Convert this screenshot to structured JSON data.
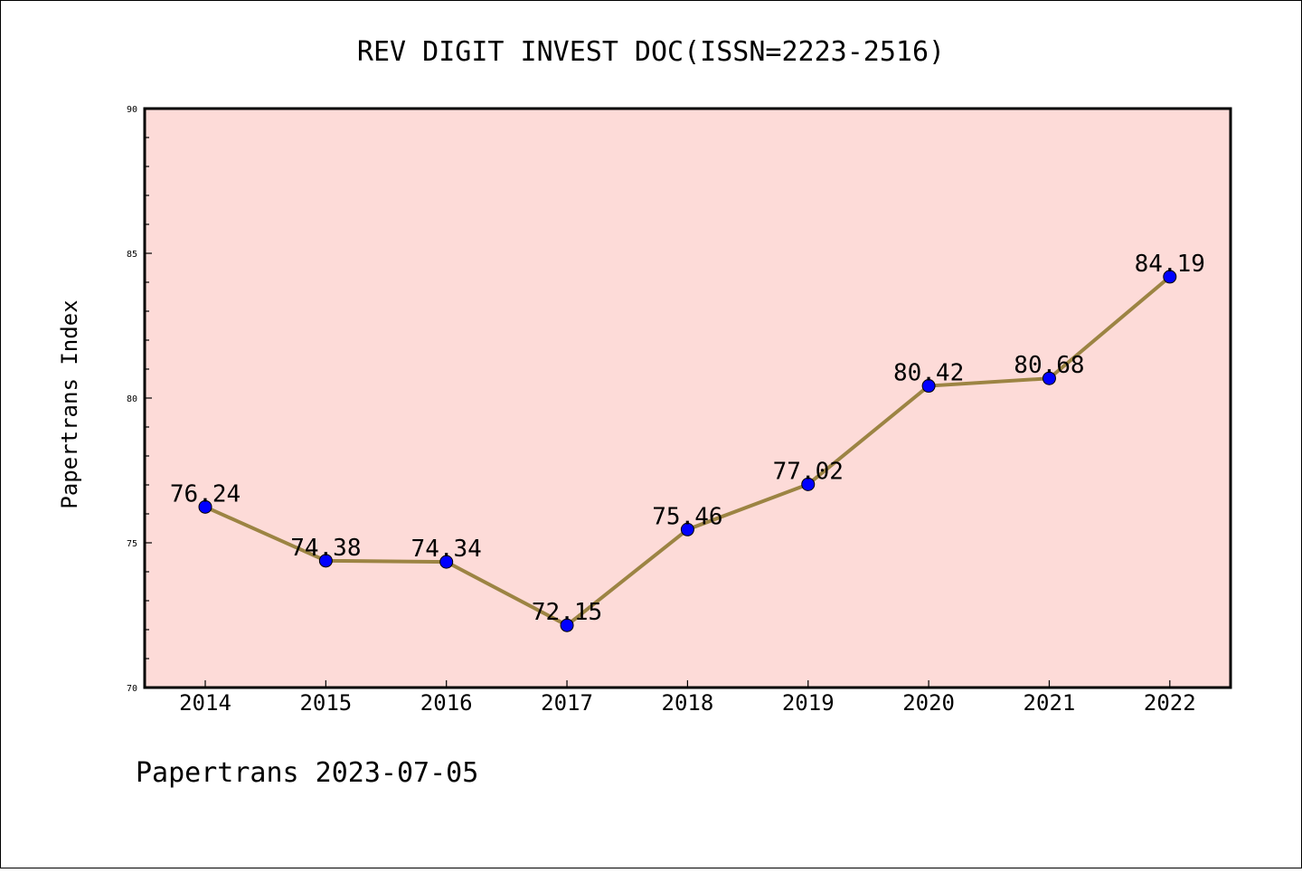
{
  "chart_data": {
    "type": "line",
    "title": "REV DIGIT INVEST DOC(ISSN=2223-2516)",
    "xlabel": "",
    "ylabel": "Papertrans Index",
    "footer": "Papertrans 2023-07-05",
    "categories": [
      "2014",
      "2015",
      "2016",
      "2017",
      "2018",
      "2019",
      "2020",
      "2021",
      "2022"
    ],
    "series": [
      {
        "values": [
          76.24,
          74.38,
          74.34,
          72.15,
          75.46,
          77.02,
          80.42,
          80.68,
          84.19
        ],
        "labels": [
          "76.24",
          "74.38",
          "74.34",
          "72.15",
          "75.46",
          "77.02",
          "80.42",
          "80.68",
          "84.19"
        ]
      }
    ],
    "ylim": [
      70,
      90
    ],
    "y_ticks": [
      70,
      75,
      80,
      85,
      90
    ],
    "y_tick_labels": [
      "70",
      "75",
      "80",
      "85",
      "90"
    ],
    "y_minor_step": 1,
    "grid": false,
    "colors": {
      "plot_background": "#fddbd8",
      "line": "#9c8443",
      "marker": "#0000ff",
      "marker_edge": "#000000",
      "frame": "#000000",
      "text": "#000000"
    }
  }
}
